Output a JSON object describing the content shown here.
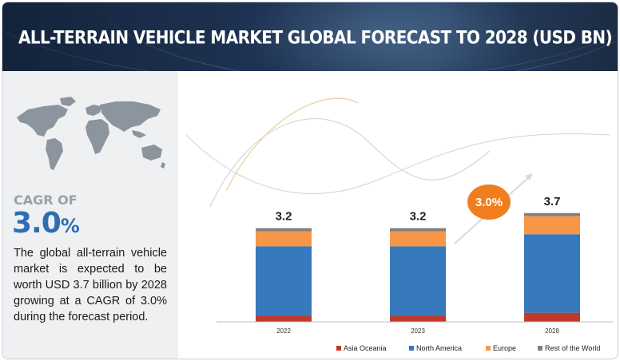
{
  "header": {
    "title": "ALL-TERRAIN VEHICLE MARKET GLOBAL FORECAST TO 2028 (USD BN)"
  },
  "sidebar": {
    "cagr_label": "CAGR OF",
    "cagr_value": "3.0",
    "cagr_unit": "%",
    "description": "The global all-terrain vehicle market is expected to be worth USD 3.7 billion by 2028 growing at a CAGR of 3.0% during the forecast period."
  },
  "badge": {
    "label": "3.0%"
  },
  "chart_data": {
    "type": "bar",
    "stacked": true,
    "categories": [
      "2022",
      "2023",
      "2028"
    ],
    "totals": [
      "3.2",
      "3.2",
      "3.7"
    ],
    "series": [
      {
        "name": "Asia Oceania",
        "color": "#c0392b",
        "values": [
          0.2,
          0.2,
          0.3
        ]
      },
      {
        "name": "North America",
        "color": "#3679bd",
        "values": [
          2.3,
          2.3,
          2.6
        ]
      },
      {
        "name": "Europe",
        "color": "#f79646",
        "values": [
          0.5,
          0.5,
          0.6
        ]
      },
      {
        "name": "Rest of the World",
        "color": "#808080",
        "values": [
          0.1,
          0.1,
          0.1
        ]
      }
    ],
    "ylim": [
      0,
      3.7
    ],
    "grid": false,
    "legend_position": "bottom"
  }
}
